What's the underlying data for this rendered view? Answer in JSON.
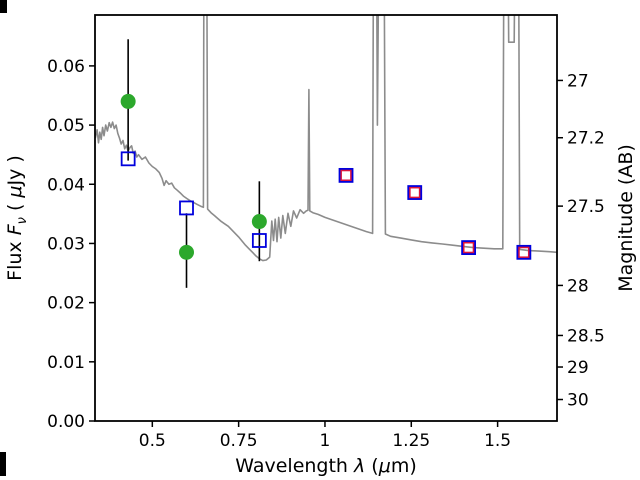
{
  "chart_data": {
    "type": "line",
    "title": "",
    "grid": false,
    "xlabel_parts": {
      "prefix": "Wavelength ",
      "lambda": "λ",
      "open": " (",
      "mu": "μ",
      "close": "m)"
    },
    "ylabel_left_parts": {
      "prefix": "Flux ",
      "symbol": "F",
      "sub": "ν",
      "open": " ( ",
      "mu": "μ",
      "close": "Jy )"
    },
    "ylabel_right": "Magnitude (AB)",
    "xlim": [
      0.334,
      1.672
    ],
    "ylim": [
      0.0,
      0.0686
    ],
    "x_ticks": {
      "values": [
        0.5,
        0.75,
        1.0,
        1.25,
        1.5
      ],
      "labels": [
        "0.5",
        "0.75",
        "1",
        "1.25",
        "1.5"
      ]
    },
    "y_ticks_left": {
      "values": [
        0.0,
        0.01,
        0.02,
        0.03,
        0.04,
        0.05,
        0.06
      ],
      "labels": [
        "0.00",
        "0.01",
        "0.02",
        "0.03",
        "0.04",
        "0.05",
        "0.06"
      ]
    },
    "y_ticks_right": {
      "magnitudes": [
        27,
        27.2,
        27.5,
        28,
        28.5,
        29,
        30
      ],
      "labels": [
        "27",
        "27.2",
        "27.5",
        "28",
        "28.5",
        "29",
        "30"
      ]
    },
    "spectrum": {
      "name": "model-spectrum",
      "color": "#8c8c8c",
      "linewidth": 1.6,
      "points": [
        [
          0.335,
          0.0478
        ],
        [
          0.34,
          0.0492
        ],
        [
          0.344,
          0.047
        ],
        [
          0.348,
          0.0488
        ],
        [
          0.352,
          0.0476
        ],
        [
          0.356,
          0.0496
        ],
        [
          0.36,
          0.0482
        ],
        [
          0.365,
          0.05
        ],
        [
          0.37,
          0.049
        ],
        [
          0.375,
          0.0504
        ],
        [
          0.38,
          0.0496
        ],
        [
          0.385,
          0.0505
        ],
        [
          0.39,
          0.0494
        ],
        [
          0.395,
          0.05
        ],
        [
          0.4,
          0.0486
        ],
        [
          0.405,
          0.0478
        ],
        [
          0.41,
          0.0468
        ],
        [
          0.415,
          0.0474
        ],
        [
          0.42,
          0.046
        ],
        [
          0.425,
          0.0466
        ],
        [
          0.43,
          0.0456
        ],
        [
          0.435,
          0.0462
        ],
        [
          0.44,
          0.0465
        ],
        [
          0.445,
          0.0452
        ],
        [
          0.45,
          0.0456
        ],
        [
          0.455,
          0.0446
        ],
        [
          0.46,
          0.045
        ],
        [
          0.47,
          0.0442
        ],
        [
          0.48,
          0.0446
        ],
        [
          0.49,
          0.0436
        ],
        [
          0.5,
          0.043
        ],
        [
          0.51,
          0.0426
        ],
        [
          0.52,
          0.042
        ],
        [
          0.528,
          0.041
        ],
        [
          0.534,
          0.0398
        ],
        [
          0.54,
          0.0406
        ],
        [
          0.548,
          0.04
        ],
        [
          0.556,
          0.0402
        ],
        [
          0.564,
          0.0394
        ],
        [
          0.572,
          0.039
        ],
        [
          0.58,
          0.0386
        ],
        [
          0.59,
          0.038
        ],
        [
          0.6,
          0.0376
        ],
        [
          0.61,
          0.0372
        ],
        [
          0.62,
          0.0369
        ],
        [
          0.63,
          0.0366
        ],
        [
          0.64,
          0.0363
        ],
        [
          0.648,
          0.0361
        ],
        [
          0.65,
          0.095
        ],
        [
          0.657,
          0.095
        ],
        [
          0.66,
          0.0358
        ],
        [
          0.67,
          0.0352
        ],
        [
          0.68,
          0.0347
        ],
        [
          0.69,
          0.0342
        ],
        [
          0.7,
          0.0337
        ],
        [
          0.71,
          0.0333
        ],
        [
          0.72,
          0.0329
        ],
        [
          0.73,
          0.0323
        ],
        [
          0.74,
          0.0317
        ],
        [
          0.75,
          0.0311
        ],
        [
          0.76,
          0.0304
        ],
        [
          0.77,
          0.0297
        ],
        [
          0.78,
          0.0291
        ],
        [
          0.79,
          0.0285
        ],
        [
          0.8,
          0.0279
        ],
        [
          0.81,
          0.0274
        ],
        [
          0.82,
          0.0271
        ],
        [
          0.83,
          0.0272
        ],
        [
          0.84,
          0.0277
        ],
        [
          0.846,
          0.0338
        ],
        [
          0.851,
          0.0305
        ],
        [
          0.856,
          0.0341
        ],
        [
          0.861,
          0.0303
        ],
        [
          0.866,
          0.0344
        ],
        [
          0.872,
          0.0309
        ],
        [
          0.878,
          0.0347
        ],
        [
          0.885,
          0.0317
        ],
        [
          0.893,
          0.0351
        ],
        [
          0.901,
          0.0329
        ],
        [
          0.909,
          0.0355
        ],
        [
          0.918,
          0.0343
        ],
        [
          0.928,
          0.0357
        ],
        [
          0.938,
          0.0351
        ],
        [
          0.946,
          0.0355
        ],
        [
          0.951,
          0.0356
        ],
        [
          0.9535,
          0.056
        ],
        [
          0.956,
          0.0355
        ],
        [
          0.965,
          0.0352
        ],
        [
          0.98,
          0.0349
        ],
        [
          1.0,
          0.0344
        ],
        [
          1.02,
          0.034
        ],
        [
          1.04,
          0.0336
        ],
        [
          1.06,
          0.0332
        ],
        [
          1.08,
          0.0328
        ],
        [
          1.1,
          0.0324
        ],
        [
          1.12,
          0.032
        ],
        [
          1.138,
          0.0317
        ],
        [
          1.141,
          0.095
        ],
        [
          1.148,
          0.095
        ],
        [
          1.152,
          0.05
        ],
        [
          1.158,
          0.095
        ],
        [
          1.17,
          0.095
        ],
        [
          1.175,
          0.0316
        ],
        [
          1.19,
          0.0312
        ],
        [
          1.22,
          0.0309
        ],
        [
          1.25,
          0.0306
        ],
        [
          1.28,
          0.0303
        ],
        [
          1.31,
          0.0301
        ],
        [
          1.34,
          0.0299
        ],
        [
          1.37,
          0.0297
        ],
        [
          1.4,
          0.0295
        ],
        [
          1.43,
          0.0293
        ],
        [
          1.46,
          0.0292
        ],
        [
          1.49,
          0.0291
        ],
        [
          1.515,
          0.0291
        ],
        [
          1.519,
          0.095
        ],
        [
          1.528,
          0.095
        ],
        [
          1.532,
          0.064
        ],
        [
          1.548,
          0.064
        ],
        [
          1.552,
          0.095
        ],
        [
          1.56,
          0.095
        ],
        [
          1.564,
          0.029
        ],
        [
          1.59,
          0.0288
        ],
        [
          1.62,
          0.0287
        ],
        [
          1.65,
          0.0286
        ],
        [
          1.672,
          0.0285
        ]
      ]
    },
    "observed_points": {
      "name": "observed-photometry",
      "marker": "circle",
      "color": "#2ca82c",
      "errorbar_color": "#000000",
      "points": [
        {
          "x": 0.43,
          "y": 0.054,
          "err_lo": 0.01,
          "err_hi": 0.0105
        },
        {
          "x": 0.599,
          "y": 0.0285,
          "err_lo": 0.006,
          "err_hi": 0.0066
        },
        {
          "x": 0.81,
          "y": 0.0337,
          "err_lo": 0.0067,
          "err_hi": 0.0068
        }
      ]
    },
    "model_points": {
      "name": "model-photometry",
      "marker": "square",
      "edge_blue": "#0000dd",
      "edge_red": "#dc143c",
      "points": [
        {
          "x": 0.43,
          "y": 0.0443,
          "red": false
        },
        {
          "x": 0.599,
          "y": 0.036,
          "red": false
        },
        {
          "x": 0.81,
          "y": 0.0305,
          "red": false
        },
        {
          "x": 1.061,
          "y": 0.0415,
          "red": true
        },
        {
          "x": 1.26,
          "y": 0.0386,
          "red": true
        },
        {
          "x": 1.416,
          "y": 0.0293,
          "red": true
        },
        {
          "x": 1.576,
          "y": 0.0285,
          "red": true
        }
      ]
    }
  }
}
